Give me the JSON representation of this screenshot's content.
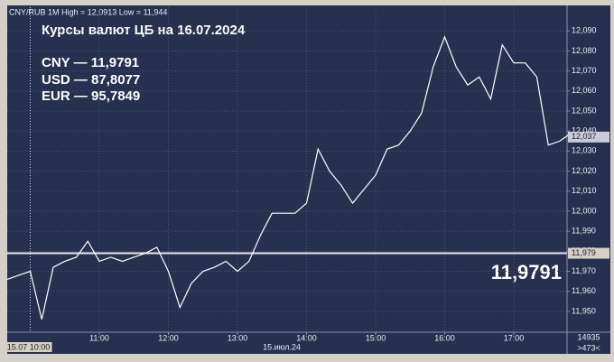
{
  "chart_data": {
    "type": "line",
    "header": "CNY/RUB 1M High = 12,0913 Low = 11,944",
    "title": "Курсы валют ЦБ на 16.07.2024",
    "annotations": [
      "CNY — 11,9791",
      "USD — 87,8077",
      "EUR — 95,7849"
    ],
    "big_label": "11,9791",
    "x": [
      "9:40",
      "9:50",
      "10:00",
      "10:10",
      "10:20",
      "10:30",
      "10:40",
      "10:50",
      "11:00",
      "11:10",
      "11:20",
      "11:30",
      "11:40",
      "11:50",
      "12:00",
      "12:10",
      "12:20",
      "12:30",
      "12:40",
      "12:50",
      "13:00",
      "13:10",
      "13:20",
      "13:30",
      "13:40",
      "13:50",
      "14:00",
      "14:10",
      "14:20",
      "14:30",
      "14:40",
      "14:50",
      "15:00",
      "15:10",
      "15:20",
      "15:30",
      "15:40",
      "15:50",
      "16:00",
      "16:10",
      "16:20",
      "16:30",
      "16:40",
      "16:50",
      "17:00",
      "17:10",
      "17:20",
      "17:30",
      "17:40",
      "17:50"
    ],
    "series": [
      {
        "name": "CNY/RUB",
        "color": "#ffffff",
        "values": [
          11.966,
          11.968,
          11.97,
          11.946,
          11.972,
          11.975,
          11.977,
          11.985,
          11.975,
          11.977,
          11.975,
          11.977,
          11.979,
          11.982,
          11.97,
          11.952,
          11.964,
          11.97,
          11.972,
          11.975,
          11.97,
          11.975,
          11.988,
          11.999,
          11.999,
          11.999,
          12.004,
          12.031,
          12.02,
          12.013,
          12.004,
          12.011,
          12.018,
          12.031,
          12.033,
          12.04,
          12.049,
          12.072,
          12.087,
          12.072,
          12.063,
          12.067,
          12.056,
          12.083,
          12.074,
          12.074,
          12.067,
          12.033,
          12.035,
          12.039
        ]
      }
    ],
    "xticks": [
      "11:00",
      "12:00",
      "13:00",
      "14:00",
      "15:00",
      "16:00",
      "17:00"
    ],
    "ylim": [
      11.9396,
      12.1018
    ],
    "yticks": [
      {
        "value": 11.95,
        "label": "11,950"
      },
      {
        "value": 11.96,
        "label": "11,960"
      },
      {
        "value": 11.97,
        "label": "11,970"
      },
      {
        "value": 11.98,
        "label": "11,980"
      },
      {
        "value": 11.99,
        "label": "11,990"
      },
      {
        "value": 12.0,
        "label": "12,000"
      },
      {
        "value": 12.01,
        "label": "12,010"
      },
      {
        "value": 12.02,
        "label": "12,020"
      },
      {
        "value": 12.03,
        "label": "12,030"
      },
      {
        "value": 12.04,
        "label": "12,040"
      },
      {
        "value": 12.05,
        "label": "12,050"
      },
      {
        "value": 12.06,
        "label": "12,060"
      },
      {
        "value": 12.07,
        "label": "12,070"
      },
      {
        "value": 12.08,
        "label": "12,080"
      },
      {
        "value": 12.09,
        "label": "12,090"
      }
    ],
    "ref_line": {
      "value": 11.979,
      "label": "11,979"
    },
    "last_price": {
      "value": 12.037,
      "label": "12,037"
    },
    "cursor": {
      "x": "10:00",
      "label": "15.07 10:00"
    },
    "date_label": "15.июл.24",
    "footer_right": [
      "14935",
      ">473<"
    ],
    "grid": true
  }
}
